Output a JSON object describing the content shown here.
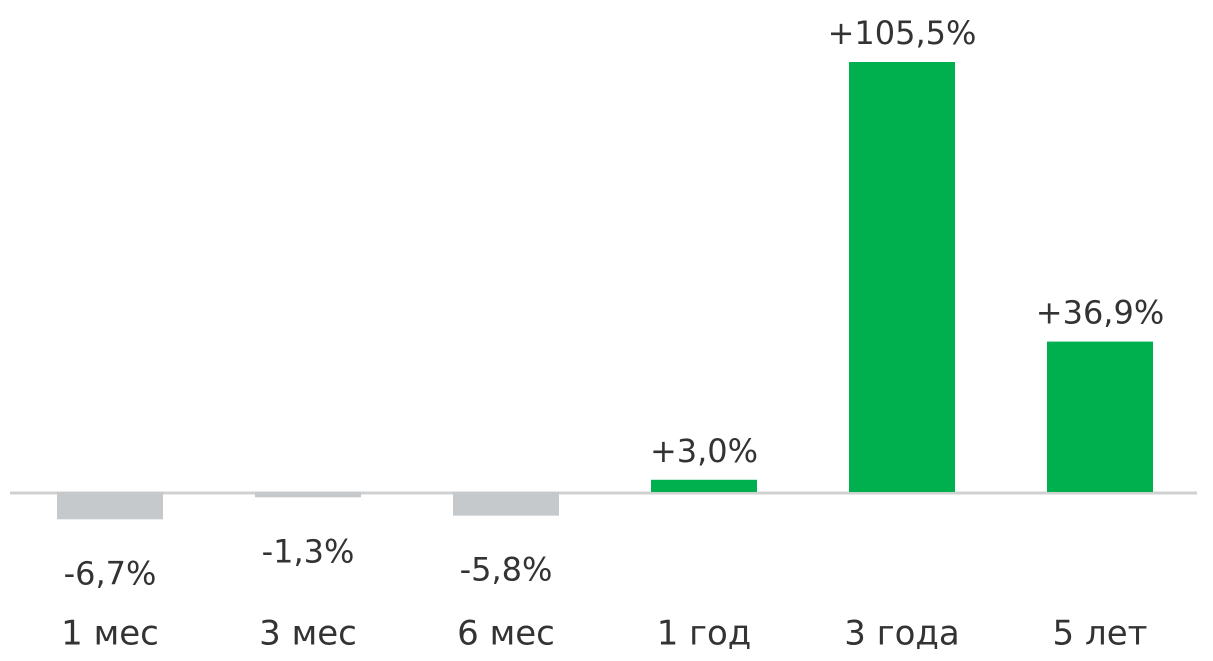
{
  "chart_data": {
    "type": "bar",
    "categories": [
      "1 мес",
      "3 мес",
      "6 мес",
      "1 год",
      "3 года",
      "5 лет"
    ],
    "values": [
      -6.7,
      -1.3,
      -5.8,
      3.0,
      105.5,
      36.9
    ],
    "value_labels": [
      "-6,7%",
      "-1,3%",
      "-5,8%",
      "+3,0%",
      "+105,5%",
      "+36,9%"
    ],
    "positive_color": "#00b04f",
    "negative_color": "#c5c9cc"
  }
}
